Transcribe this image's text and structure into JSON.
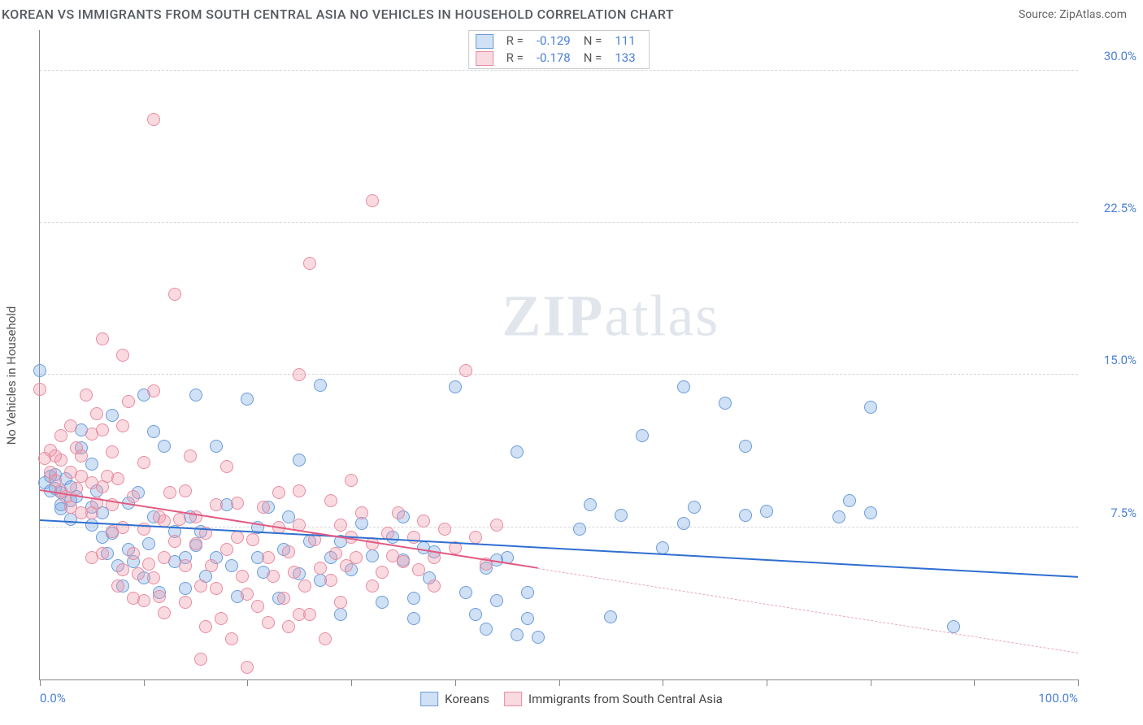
{
  "title": "KOREAN VS IMMIGRANTS FROM SOUTH CENTRAL ASIA NO VEHICLES IN HOUSEHOLD CORRELATION CHART",
  "source": "Source: ZipAtlas.com",
  "ylabel": "No Vehicles in Household",
  "watermark": {
    "bold": "ZIP",
    "rest": "atlas"
  },
  "colors": {
    "title_text": "#555a60",
    "source_text": "#666666",
    "axis_line": "#888888",
    "grid_dash": "#d7d7d7",
    "tick_label": "#4a80d6",
    "ylabel_text": "#555555",
    "legend_border": "#c9c9c9",
    "stat_label": "#555555",
    "stat_value": "#4a80d6",
    "legend_text": "#444444",
    "background": "#ffffff"
  },
  "chart": {
    "type": "scatter",
    "xlim": [
      0,
      100
    ],
    "ylim": [
      0,
      32
    ],
    "x_ticks": [
      0,
      10,
      20,
      30,
      40,
      50,
      60,
      70,
      80,
      90,
      100
    ],
    "x_tick_labels": {
      "0": "0.0%",
      "100": "100.0%"
    },
    "y_gridlines": [
      7.5,
      15.0,
      22.5,
      30.0
    ],
    "y_tick_labels": [
      "7.5%",
      "15.0%",
      "22.5%",
      "30.0%"
    ],
    "marker_radius": 8,
    "marker_stroke_width": 1,
    "trend_line_width": 2,
    "label_fontsize": 15
  },
  "series": [
    {
      "name": "Koreans",
      "fill": "rgba(120,165,225,0.35)",
      "stroke": "#6b9ddb",
      "trend_color": "#2f6fd0",
      "trend_dash_color": "#2f6fd0",
      "r": "-0.129",
      "n": "111",
      "solid_x_end": 100,
      "trend": {
        "x1": 0,
        "y1": 7.8,
        "x2": 100,
        "y2": 5.0
      },
      "points": [
        [
          0,
          15.2
        ],
        [
          0.5,
          9.7
        ],
        [
          1,
          9.3
        ],
        [
          1,
          10.0
        ],
        [
          1.5,
          9.4
        ],
        [
          1.5,
          10.1
        ],
        [
          2,
          8.6
        ],
        [
          2,
          9.2
        ],
        [
          2,
          8.4
        ],
        [
          2.5,
          9.9
        ],
        [
          3,
          8.8
        ],
        [
          3,
          9.5
        ],
        [
          3.5,
          9.0
        ],
        [
          3,
          7.9
        ],
        [
          4,
          12.3
        ],
        [
          4,
          11.4
        ],
        [
          5,
          10.6
        ],
        [
          5,
          8.5
        ],
        [
          5,
          7.6
        ],
        [
          5.5,
          9.3
        ],
        [
          6,
          8.2
        ],
        [
          6,
          7.0
        ],
        [
          6.5,
          6.2
        ],
        [
          7,
          13.0
        ],
        [
          7,
          7.2
        ],
        [
          7.5,
          5.6
        ],
        [
          8,
          4.6
        ],
        [
          8.5,
          8.7
        ],
        [
          8.5,
          6.4
        ],
        [
          9,
          5.8
        ],
        [
          9.5,
          9.2
        ],
        [
          10,
          14.0
        ],
        [
          10,
          5.0
        ],
        [
          10.5,
          6.7
        ],
        [
          11,
          12.2
        ],
        [
          11,
          8.0
        ],
        [
          11.5,
          4.3
        ],
        [
          12,
          11.5
        ],
        [
          13,
          5.8
        ],
        [
          13,
          7.3
        ],
        [
          14,
          6.0
        ],
        [
          14,
          4.5
        ],
        [
          14.5,
          8.0
        ],
        [
          15,
          14.0
        ],
        [
          15,
          6.6
        ],
        [
          15.5,
          7.3
        ],
        [
          16,
          5.1
        ],
        [
          17,
          11.5
        ],
        [
          17,
          6.0
        ],
        [
          18,
          8.6
        ],
        [
          18.5,
          5.6
        ],
        [
          19,
          4.1
        ],
        [
          20,
          13.8
        ],
        [
          21,
          6.0
        ],
        [
          21,
          7.5
        ],
        [
          21.5,
          5.3
        ],
        [
          22,
          8.5
        ],
        [
          23,
          4.0
        ],
        [
          23.5,
          6.4
        ],
        [
          24,
          8.0
        ],
        [
          25,
          10.8
        ],
        [
          25,
          5.2
        ],
        [
          26,
          6.8
        ],
        [
          27,
          14.5
        ],
        [
          27,
          4.9
        ],
        [
          28,
          6.0
        ],
        [
          29,
          6.8
        ],
        [
          29,
          3.2
        ],
        [
          30,
          5.4
        ],
        [
          31,
          7.7
        ],
        [
          32,
          6.1
        ],
        [
          33,
          3.8
        ],
        [
          34,
          7.0
        ],
        [
          35,
          5.9
        ],
        [
          35,
          8.0
        ],
        [
          36,
          4.0
        ],
        [
          36,
          3.0
        ],
        [
          37,
          6.5
        ],
        [
          37.5,
          5.0
        ],
        [
          38,
          6.3
        ],
        [
          40,
          14.4
        ],
        [
          41,
          4.3
        ],
        [
          42,
          3.2
        ],
        [
          43,
          5.5
        ],
        [
          43,
          2.5
        ],
        [
          44,
          3.9
        ],
        [
          44,
          5.9
        ],
        [
          45,
          6.0
        ],
        [
          46,
          11.2
        ],
        [
          46,
          2.2
        ],
        [
          47,
          4.3
        ],
        [
          47,
          3.0
        ],
        [
          48,
          2.1
        ],
        [
          52,
          7.4
        ],
        [
          53,
          8.6
        ],
        [
          55,
          3.1
        ],
        [
          56,
          8.1
        ],
        [
          58,
          12.0
        ],
        [
          60,
          6.5
        ],
        [
          62,
          14.4
        ],
        [
          62,
          7.7
        ],
        [
          63,
          8.5
        ],
        [
          66,
          13.6
        ],
        [
          68,
          11.5
        ],
        [
          70,
          8.3
        ],
        [
          77,
          8.0
        ],
        [
          78,
          8.8
        ],
        [
          80,
          13.4
        ],
        [
          80,
          8.2
        ],
        [
          88,
          2.6
        ],
        [
          68,
          8.1
        ]
      ]
    },
    {
      "name": "Immigrants from South Central Asia",
      "fill": "rgba(240,150,170,0.35)",
      "stroke": "#e88ca0",
      "trend_color": "#e25a82",
      "trend_dash_color": "#e9a8b8",
      "r": "-0.178",
      "n": "133",
      "solid_x_end": 48,
      "trend": {
        "x1": 0,
        "y1": 9.3,
        "x2": 100,
        "y2": 1.3
      },
      "points": [
        [
          0,
          14.3
        ],
        [
          0.5,
          10.9
        ],
        [
          1,
          10.2
        ],
        [
          1,
          11.3
        ],
        [
          1.5,
          9.8
        ],
        [
          1.5,
          11.0
        ],
        [
          2,
          9.3
        ],
        [
          2,
          10.8
        ],
        [
          2,
          12.0
        ],
        [
          2.5,
          9.0
        ],
        [
          3,
          10.2
        ],
        [
          3,
          12.5
        ],
        [
          3,
          8.5
        ],
        [
          3.5,
          11.4
        ],
        [
          3.5,
          9.4
        ],
        [
          4,
          8.2
        ],
        [
          4,
          11.0
        ],
        [
          4,
          10.0
        ],
        [
          4.5,
          14.0
        ],
        [
          5,
          12.1
        ],
        [
          5,
          8.2
        ],
        [
          5,
          9.7
        ],
        [
          5,
          6.0
        ],
        [
          5.5,
          13.1
        ],
        [
          5.5,
          8.7
        ],
        [
          6,
          16.8
        ],
        [
          6,
          12.3
        ],
        [
          6,
          9.5
        ],
        [
          6,
          6.2
        ],
        [
          6.5,
          10.0
        ],
        [
          7,
          8.6
        ],
        [
          7,
          7.3
        ],
        [
          7,
          11.2
        ],
        [
          7.5,
          4.6
        ],
        [
          7.5,
          9.9
        ],
        [
          8,
          16.0
        ],
        [
          8,
          12.5
        ],
        [
          8,
          7.5
        ],
        [
          8,
          5.4
        ],
        [
          8.5,
          13.7
        ],
        [
          9,
          6.2
        ],
        [
          9,
          4.0
        ],
        [
          9,
          9.0
        ],
        [
          9.5,
          5.2
        ],
        [
          10,
          7.4
        ],
        [
          10,
          10.7
        ],
        [
          10,
          3.9
        ],
        [
          10.5,
          5.7
        ],
        [
          11,
          27.6
        ],
        [
          11,
          14.2
        ],
        [
          11,
          5.0
        ],
        [
          11.5,
          8.0
        ],
        [
          11.5,
          4.1
        ],
        [
          12,
          7.8
        ],
        [
          12,
          6.0
        ],
        [
          12,
          3.3
        ],
        [
          12.5,
          9.2
        ],
        [
          13,
          19.0
        ],
        [
          13,
          6.8
        ],
        [
          13.5,
          7.9
        ],
        [
          14,
          5.6
        ],
        [
          14,
          3.8
        ],
        [
          14.5,
          11.0
        ],
        [
          15,
          6.7
        ],
        [
          15,
          8.0
        ],
        [
          15.5,
          4.6
        ],
        [
          15.5,
          1.0
        ],
        [
          16,
          7.2
        ],
        [
          16,
          2.6
        ],
        [
          16.5,
          5.6
        ],
        [
          17,
          8.6
        ],
        [
          17,
          4.5
        ],
        [
          17.5,
          3.0
        ],
        [
          18,
          10.5
        ],
        [
          18,
          6.4
        ],
        [
          18.5,
          2.0
        ],
        [
          19,
          8.7
        ],
        [
          19,
          7.0
        ],
        [
          19.5,
          5.1
        ],
        [
          20,
          4.2
        ],
        [
          20,
          0.6
        ],
        [
          20.5,
          6.9
        ],
        [
          21,
          3.6
        ],
        [
          21.5,
          8.5
        ],
        [
          22,
          6.0
        ],
        [
          22,
          2.8
        ],
        [
          22.5,
          5.1
        ],
        [
          23,
          9.2
        ],
        [
          23,
          7.5
        ],
        [
          23.5,
          4.0
        ],
        [
          24,
          6.3
        ],
        [
          24,
          2.6
        ],
        [
          24.5,
          5.3
        ],
        [
          25,
          15.0
        ],
        [
          25,
          7.6
        ],
        [
          25,
          9.3
        ],
        [
          25.5,
          4.6
        ],
        [
          26,
          20.5
        ],
        [
          26,
          3.2
        ],
        [
          26.5,
          6.9
        ],
        [
          27,
          5.5
        ],
        [
          27.5,
          2.0
        ],
        [
          28,
          8.8
        ],
        [
          28,
          4.9
        ],
        [
          28.5,
          6.2
        ],
        [
          29,
          7.6
        ],
        [
          29,
          3.8
        ],
        [
          29.5,
          5.6
        ],
        [
          30,
          9.8
        ],
        [
          30,
          7.0
        ],
        [
          30.5,
          6.0
        ],
        [
          31,
          8.2
        ],
        [
          32,
          4.6
        ],
        [
          32,
          6.7
        ],
        [
          32,
          23.6
        ],
        [
          33,
          5.3
        ],
        [
          33.5,
          7.2
        ],
        [
          34,
          6.1
        ],
        [
          34.5,
          8.2
        ],
        [
          35,
          5.8
        ],
        [
          36,
          7.0
        ],
        [
          36.5,
          5.4
        ],
        [
          37,
          7.8
        ],
        [
          38,
          6.0
        ],
        [
          38,
          4.6
        ],
        [
          39,
          7.4
        ],
        [
          40,
          6.5
        ],
        [
          41,
          15.2
        ],
        [
          42,
          7.0
        ],
        [
          43,
          5.7
        ],
        [
          44,
          7.6
        ],
        [
          25,
          3.2
        ],
        [
          14,
          9.3
        ]
      ]
    }
  ],
  "legend_top": {
    "r_label": "R =",
    "n_label": "N ="
  },
  "legend_bottom_labels": [
    "Koreans",
    "Immigrants from South Central Asia"
  ]
}
